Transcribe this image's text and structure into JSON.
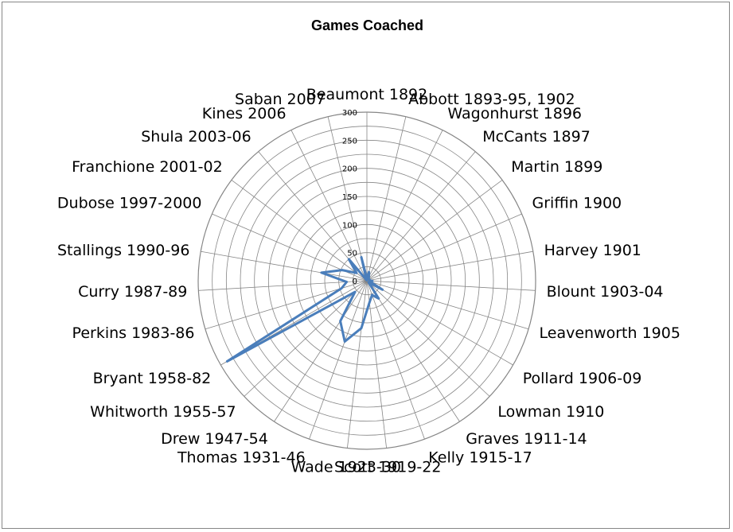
{
  "chart_data": {
    "type": "radar",
    "title": "Games Coached",
    "categories": [
      "Beaumont 1892",
      "Abbott 1893-95, 1902",
      "Wagonhurst 1896",
      "McCants 1897",
      "Martin 1899",
      "Griffin 1900",
      "Harvey 1901",
      "Blount 1903-04",
      "Leavenworth 1905",
      "Pollard 1906-09",
      "Lowman 1910",
      "Graves 1911-14",
      "Kelly 1915-17",
      "Scott 1919-22",
      "Wade 1923-30",
      "Thomas 1931-46",
      "Drew 1947-54",
      "Whitworth 1955-57",
      "Bryant 1958-82",
      "Perkins 1983-86",
      "Curry 1987-89",
      "Stallings 1990-96",
      "Dubose 1997-2000",
      "Franchione 2001-02",
      "Shula 2003-06",
      "Kines 2006",
      "Saban 2007"
    ],
    "series": [
      {
        "name": "",
        "color": "#4A7EBB",
        "values": [
          4,
          16,
          8,
          5,
          4,
          5,
          5,
          10,
          6,
          32,
          4,
          38,
          27,
          39,
          85,
          115,
          86,
          29,
          287,
          47,
          36,
          82,
          48,
          23,
          50,
          1,
          43
        ]
      }
    ],
    "rlim": [
      0,
      300
    ],
    "ticks": [
      0,
      50,
      100,
      150,
      200,
      250,
      300
    ],
    "grid": true,
    "legend": "none"
  }
}
